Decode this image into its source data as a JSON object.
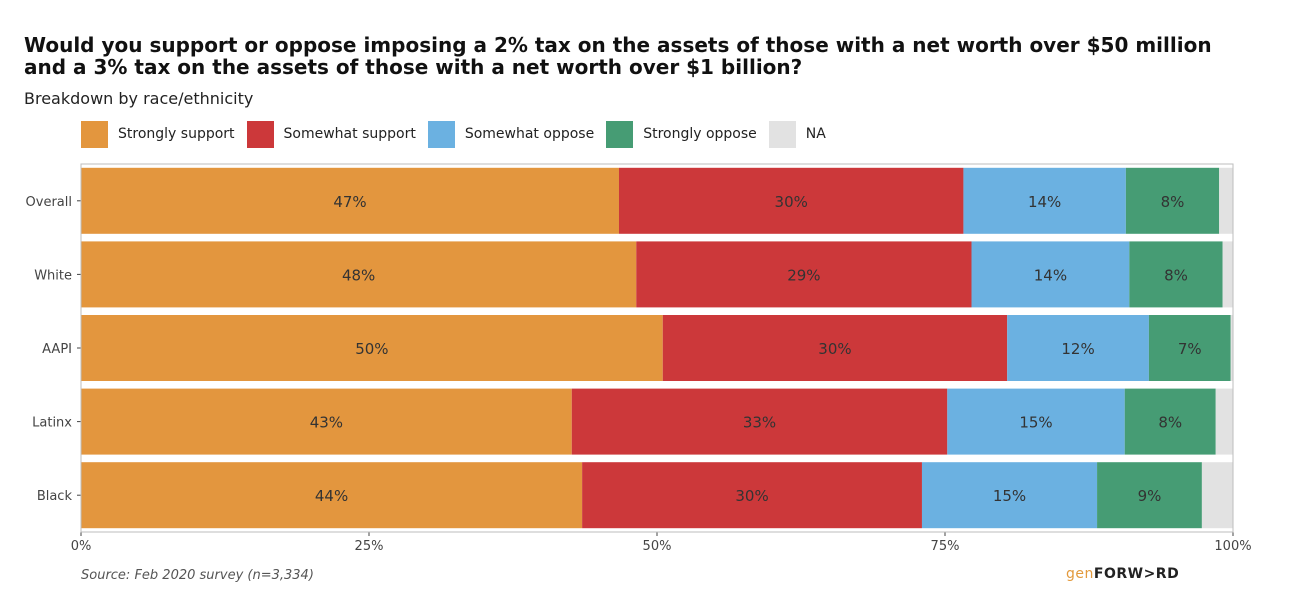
{
  "title": "Would you support or oppose imposing a 2% tax on the assets of those with a net worth over $50 million and a 3% tax on the assets of those with a net worth over $1 billion?",
  "subtitle": "Breakdown by race/ethnicity",
  "source": "Source: Feb 2020 survey (n=3,334)",
  "brand": {
    "part1": "gen",
    "part2": "FORW>RD"
  },
  "legend": [
    {
      "label": "Strongly support",
      "color": "#e3963e"
    },
    {
      "label": "Somewhat support",
      "color": "#cc383a"
    },
    {
      "label": "Somewhat oppose",
      "color": "#6bb1e1"
    },
    {
      "label": "Strongly oppose",
      "color": "#469c74"
    },
    {
      "label": "NA",
      "color": "#e2e2e2"
    }
  ],
  "chart_data": {
    "type": "bar",
    "orientation": "horizontal",
    "stacked": true,
    "title": "Would you support or oppose imposing a 2% tax on the assets of those with a net worth over $50 million and a 3% tax on the assets of those with a net worth over $1 billion?",
    "subtitle": "Breakdown by race/ethnicity",
    "categories": [
      "Overall",
      "White",
      "AAPI",
      "Latinx",
      "Black"
    ],
    "xlim": [
      0,
      100
    ],
    "x_ticks": [
      "0%",
      "25%",
      "50%",
      "75%",
      "100%"
    ],
    "legend_position": "top-left",
    "grid": false,
    "series": [
      {
        "name": "Strongly support",
        "values": [
          46.7,
          48.2,
          50.5,
          42.6,
          43.5
        ],
        "labels": [
          "47%",
          "48%",
          "50%",
          "43%",
          "44%"
        ]
      },
      {
        "name": "Somewhat support",
        "values": [
          29.9,
          29.1,
          29.9,
          32.6,
          29.5
        ],
        "labels": [
          "30%",
          "29%",
          "30%",
          "33%",
          "30%"
        ]
      },
      {
        "name": "Somewhat oppose",
        "values": [
          14.1,
          13.7,
          12.3,
          15.4,
          15.2
        ],
        "labels": [
          "14%",
          "14%",
          "12%",
          "15%",
          "15%"
        ]
      },
      {
        "name": "Strongly oppose",
        "values": [
          8.1,
          8.1,
          7.1,
          7.9,
          9.1
        ],
        "labels": [
          "8%",
          "8%",
          "7%",
          "8%",
          "9%"
        ]
      },
      {
        "name": "NA",
        "values": [
          1.2,
          0.9,
          0.2,
          1.5,
          2.7
        ],
        "labels": [
          "",
          "",
          "",
          "",
          ""
        ]
      }
    ]
  }
}
